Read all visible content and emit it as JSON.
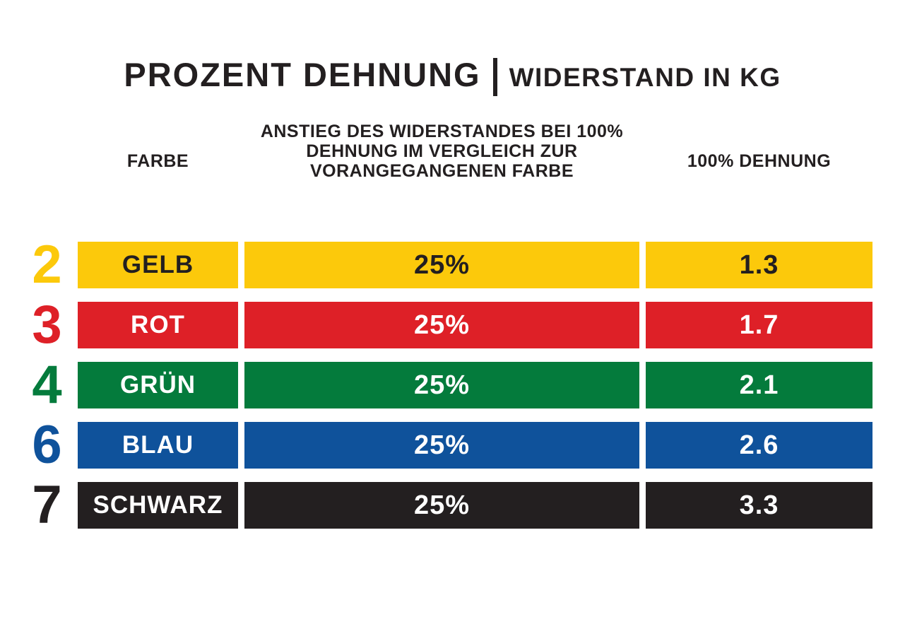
{
  "title": {
    "primary": "PROZENT DEHNUNG",
    "separator": "|",
    "secondary": "WIDERSTAND IN KG"
  },
  "table": {
    "headers": {
      "farbe": "FARBE",
      "anstieg_lines": [
        "ANSTIEG DES WIDERSTANDES BEI 100%",
        "DEHNUNG IM VERGLEICH ZUR",
        "VORANGEGANGENEN FARBE"
      ],
      "dehnung": "100% DEHNUNG"
    },
    "rows": [
      {
        "level": "2",
        "name": "GELB",
        "increase": "25%",
        "resistance": "1.3",
        "band_color": "#FCC90B",
        "text_color": "#231F20"
      },
      {
        "level": "3",
        "name": "ROT",
        "increase": "25%",
        "resistance": "1.7",
        "band_color": "#DE2027",
        "text_color": "#FFFFFF"
      },
      {
        "level": "4",
        "name": "GRÜN",
        "increase": "25%",
        "resistance": "2.1",
        "band_color": "#047B3C",
        "text_color": "#FFFFFF"
      },
      {
        "level": "6",
        "name": "BLAU",
        "increase": "25%",
        "resistance": "2.6",
        "band_color": "#0F529B",
        "text_color": "#FFFFFF"
      },
      {
        "level": "7",
        "name": "SCHWARZ",
        "increase": "25%",
        "resistance": "3.3",
        "band_color": "#231F20",
        "text_color": "#FFFFFF"
      }
    ]
  },
  "colors": {
    "text": "#231F20",
    "background": "#FFFFFF"
  },
  "chart_data": {
    "type": "table",
    "title": "PROZENT DEHNUNG | WIDERSTAND IN KG",
    "columns": [
      "FARBE",
      "ANSTIEG DES WIDERSTANDES BEI 100% DEHNUNG IM VERGLEICH ZUR VORANGEGANGENEN FARBE",
      "100% DEHNUNG"
    ],
    "rows": [
      {
        "level": 2,
        "farbe": "GELB",
        "anstieg_prozent": 25,
        "widerstand_100_dehnung_kg": 1.3
      },
      {
        "level": 3,
        "farbe": "ROT",
        "anstieg_prozent": 25,
        "widerstand_100_dehnung_kg": 1.7
      },
      {
        "level": 4,
        "farbe": "GRÜN",
        "anstieg_prozent": 25,
        "widerstand_100_dehnung_kg": 2.1
      },
      {
        "level": 6,
        "farbe": "BLAU",
        "anstieg_prozent": 25,
        "widerstand_100_dehnung_kg": 2.6
      },
      {
        "level": 7,
        "farbe": "SCHWARZ",
        "anstieg_prozent": 25,
        "widerstand_100_dehnung_kg": 3.3
      }
    ]
  }
}
